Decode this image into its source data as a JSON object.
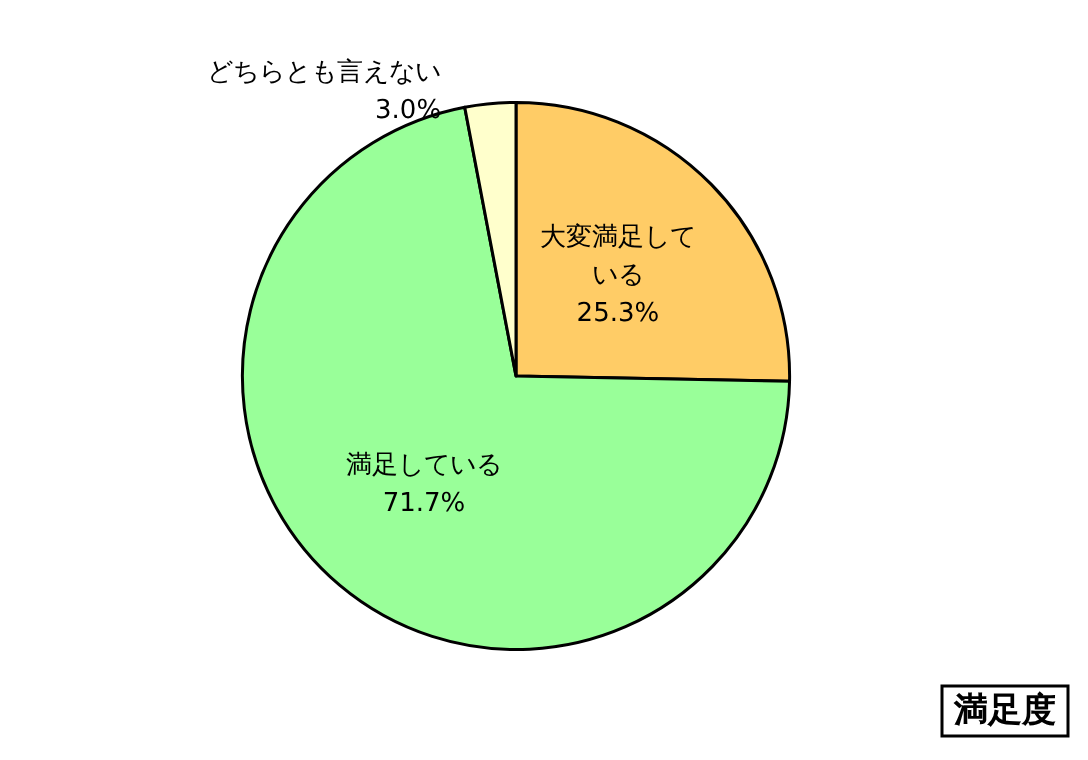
{
  "chart_data": {
    "type": "pie",
    "title": "満足度",
    "categories": [
      "大変満足している",
      "満足している",
      "どちらとも言えない"
    ],
    "values": [
      25.3,
      71.7,
      3.0
    ],
    "value_labels": [
      "25.3%",
      "71.7%",
      "3.0%"
    ],
    "colors": [
      "#ffcc66",
      "#99ff99",
      "#ffffcc"
    ],
    "legend": false
  }
}
